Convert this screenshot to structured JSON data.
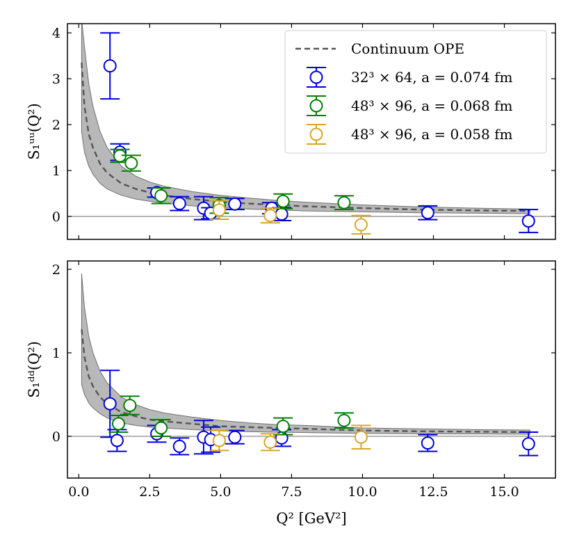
{
  "colors": {
    "ope": "#555555",
    "band": "#a0a0a0",
    "series": [
      "#0000dd",
      "#008000",
      "#daa520"
    ]
  },
  "chart_data": {
    "type": "scatter",
    "xlabel": "Q² [GeV²]",
    "xlim": [
      -0.4,
      16.8
    ],
    "xticks": [
      0.0,
      2.5,
      5.0,
      7.5,
      10.0,
      12.5,
      15.0
    ],
    "xtick_labels": [
      "0.0",
      "2.5",
      "5.0",
      "7.5",
      "10.0",
      "12.5",
      "15.0"
    ],
    "legend": {
      "location": "top-right",
      "entries": [
        {
          "label": "Continuum OPE",
          "style": "dashed-line"
        },
        {
          "label": "32³ × 64, a = 0.074 fm",
          "style": "marker",
          "series": 0
        },
        {
          "label": "48³ × 96, a = 0.068 fm",
          "style": "marker",
          "series": 1
        },
        {
          "label": "48³ × 96, a = 0.058 fm",
          "style": "marker",
          "series": 2
        }
      ]
    },
    "panels": [
      {
        "name": "uu",
        "ylabel": "S₁ᵘᵘ(Q²)",
        "ylim": [
          -0.5,
          4.2
        ],
        "yticks": [
          0,
          1,
          2,
          3,
          4
        ],
        "ytick_labels": [
          "0",
          "1",
          "2",
          "3",
          "4"
        ],
        "zero_line": true,
        "ope": {
          "x": [
            0.1,
            0.2,
            0.35,
            0.5,
            0.75,
            1.0,
            1.5,
            2.0,
            2.5,
            3.0,
            4.0,
            5.0,
            6.0,
            7.0,
            8.0,
            10.0,
            12.0,
            14.0,
            15.9
          ],
          "y": [
            3.35,
            2.4,
            1.8,
            1.5,
            1.15,
            0.95,
            0.72,
            0.6,
            0.52,
            0.46,
            0.38,
            0.32,
            0.28,
            0.25,
            0.22,
            0.18,
            0.15,
            0.13,
            0.12
          ],
          "lo": [
            1.85,
            1.4,
            1.1,
            0.92,
            0.72,
            0.6,
            0.46,
            0.38,
            0.33,
            0.29,
            0.23,
            0.19,
            0.16,
            0.14,
            0.12,
            0.1,
            0.08,
            0.07,
            0.06
          ],
          "hi": [
            4.3,
            3.7,
            2.9,
            2.4,
            1.85,
            1.5,
            1.1,
            0.88,
            0.75,
            0.66,
            0.54,
            0.46,
            0.4,
            0.35,
            0.31,
            0.25,
            0.21,
            0.18,
            0.16
          ]
        },
        "series": [
          {
            "x": [
              1.1,
              1.45,
              2.75,
              3.55,
              4.4,
              4.65,
              5.5,
              6.8,
              7.15,
              12.3,
              15.85
            ],
            "y": [
              3.28,
              1.4,
              0.52,
              0.28,
              0.18,
              0.07,
              0.27,
              0.18,
              0.05,
              0.08,
              -0.1
            ],
            "err": [
              0.72,
              0.18,
              0.1,
              0.15,
              0.25,
              0.12,
              0.12,
              0.12,
              0.14,
              0.15,
              0.25
            ]
          },
          {
            "x": [
              1.45,
              1.85,
              2.9,
              4.95,
              7.2,
              9.35
            ],
            "y": [
              1.32,
              1.16,
              0.45,
              0.24,
              0.33,
              0.3
            ],
            "err": [
              0.14,
              0.17,
              0.17,
              0.17,
              0.16,
              0.15
            ]
          },
          {
            "x": [
              4.95,
              6.75,
              9.95
            ],
            "y": [
              0.14,
              0.02,
              -0.18
            ],
            "err": [
              0.2,
              0.16,
              0.2
            ]
          }
        ]
      },
      {
        "name": "dd",
        "ylabel": "S₁ᵈᵈ(Q²)",
        "ylim": [
          -0.5,
          2.1
        ],
        "yticks": [
          0,
          1,
          2
        ],
        "ytick_labels": [
          "0",
          "1",
          "2"
        ],
        "zero_line": true,
        "ope": {
          "x": [
            0.1,
            0.2,
            0.35,
            0.5,
            0.75,
            1.0,
            1.5,
            2.0,
            2.5,
            3.0,
            4.0,
            5.0,
            6.0,
            7.0,
            8.0,
            10.0,
            12.0,
            14.0,
            15.9
          ],
          "y": [
            1.28,
            0.95,
            0.72,
            0.6,
            0.47,
            0.39,
            0.29,
            0.24,
            0.2,
            0.18,
            0.15,
            0.12,
            0.11,
            0.1,
            0.09,
            0.07,
            0.06,
            0.055,
            0.05
          ],
          "lo": [
            0.62,
            0.5,
            0.4,
            0.34,
            0.27,
            0.22,
            0.16,
            0.13,
            0.11,
            0.1,
            0.08,
            0.065,
            0.055,
            0.05,
            0.045,
            0.035,
            0.03,
            0.028,
            0.025
          ],
          "hi": [
            1.95,
            1.55,
            1.2,
            1.0,
            0.78,
            0.64,
            0.47,
            0.38,
            0.32,
            0.28,
            0.23,
            0.19,
            0.16,
            0.14,
            0.13,
            0.1,
            0.09,
            0.08,
            0.075
          ]
        },
        "series": [
          {
            "x": [
              1.1,
              1.35,
              2.75,
              3.55,
              4.4,
              4.65,
              5.5,
              7.15,
              12.3,
              15.85
            ],
            "y": [
              0.39,
              -0.05,
              0.03,
              -0.12,
              -0.01,
              -0.04,
              -0.01,
              -0.02,
              -0.08,
              -0.09
            ],
            "err": [
              0.4,
              0.13,
              0.1,
              0.1,
              0.2,
              0.15,
              0.08,
              0.1,
              0.1,
              0.14
            ]
          },
          {
            "x": [
              1.4,
              1.8,
              2.9,
              7.2,
              9.35
            ],
            "y": [
              0.15,
              0.37,
              0.1,
              0.12,
              0.19
            ],
            "err": [
              0.1,
              0.11,
              0.1,
              0.1,
              0.09
            ]
          },
          {
            "x": [
              4.95,
              6.75,
              9.95
            ],
            "y": [
              -0.05,
              -0.07,
              -0.01
            ],
            "err": [
              0.12,
              0.1,
              0.14
            ]
          }
        ]
      }
    ]
  }
}
